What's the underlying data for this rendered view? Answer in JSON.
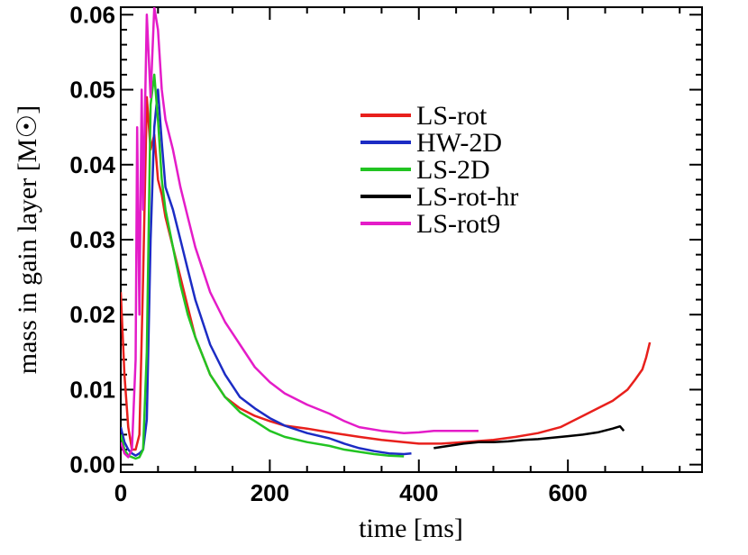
{
  "chart_data": {
    "type": "line",
    "title": "",
    "xlabel": "time [ms]",
    "ylabel": "mass in gain layer [M☉]",
    "xlim": [
      0,
      780
    ],
    "ylim": [
      -0.001,
      0.061
    ],
    "xticks": [
      0,
      200,
      400,
      600
    ],
    "xtick_labels": [
      "0",
      "200",
      "400",
      "600"
    ],
    "yticks": [
      0.0,
      0.01,
      0.02,
      0.03,
      0.04,
      0.05,
      0.06
    ],
    "ytick_labels": [
      "0.00",
      "0.01",
      "0.02",
      "0.03",
      "0.04",
      "0.05",
      "0.06"
    ],
    "grid": false,
    "legend_position": "upper-center",
    "series": [
      {
        "name": "LS-rot",
        "color": "#e8201c",
        "x": [
          0,
          5,
          10,
          15,
          20,
          25,
          30,
          35,
          40,
          45,
          50,
          55,
          60,
          70,
          80,
          90,
          100,
          120,
          140,
          160,
          180,
          200,
          220,
          250,
          280,
          300,
          320,
          350,
          380,
          400,
          430,
          460,
          500,
          530,
          560,
          590,
          620,
          640,
          660,
          680,
          690,
          700,
          705,
          710
        ],
        "y": [
          0.023,
          0.012,
          0.005,
          0.002,
          0.002,
          0.004,
          0.025,
          0.049,
          0.042,
          0.044,
          0.038,
          0.036,
          0.033,
          0.029,
          0.025,
          0.021,
          0.017,
          0.012,
          0.009,
          0.0075,
          0.0065,
          0.0058,
          0.0052,
          0.0048,
          0.0043,
          0.004,
          0.0037,
          0.0033,
          0.003,
          0.0028,
          0.0028,
          0.003,
          0.0033,
          0.0037,
          0.0042,
          0.005,
          0.0065,
          0.0075,
          0.0085,
          0.01,
          0.0113,
          0.0127,
          0.0143,
          0.0163
        ]
      },
      {
        "name": "HW-2D",
        "color": "#1c2cc4",
        "x": [
          0,
          5,
          10,
          15,
          20,
          25,
          30,
          35,
          40,
          45,
          50,
          55,
          60,
          70,
          80,
          90,
          100,
          120,
          140,
          160,
          180,
          200,
          220,
          250,
          280,
          300,
          320,
          340,
          360,
          380,
          390
        ],
        "y": [
          0.005,
          0.003,
          0.002,
          0.0015,
          0.0012,
          0.0015,
          0.002,
          0.006,
          0.03,
          0.045,
          0.05,
          0.043,
          0.037,
          0.034,
          0.03,
          0.026,
          0.022,
          0.016,
          0.012,
          0.009,
          0.0075,
          0.0062,
          0.0052,
          0.0042,
          0.0035,
          0.0028,
          0.0022,
          0.0018,
          0.0015,
          0.0014,
          0.0015
        ]
      },
      {
        "name": "LS-2D",
        "color": "#22c422",
        "x": [
          0,
          5,
          10,
          15,
          20,
          25,
          30,
          35,
          40,
          45,
          50,
          55,
          60,
          70,
          80,
          90,
          100,
          120,
          140,
          160,
          180,
          200,
          220,
          250,
          280,
          300,
          320,
          340,
          360,
          380
        ],
        "y": [
          0.004,
          0.002,
          0.0012,
          0.001,
          0.0008,
          0.001,
          0.002,
          0.015,
          0.048,
          0.052,
          0.046,
          0.038,
          0.034,
          0.029,
          0.024,
          0.02,
          0.017,
          0.012,
          0.009,
          0.007,
          0.0058,
          0.0045,
          0.0037,
          0.003,
          0.0025,
          0.002,
          0.0017,
          0.0014,
          0.0012,
          0.0011
        ]
      },
      {
        "name": "LS-rot-hr",
        "color": "#000000",
        "x": [
          420,
          440,
          460,
          480,
          500,
          520,
          540,
          560,
          580,
          600,
          620,
          640,
          660,
          670,
          675
        ],
        "y": [
          0.0022,
          0.0025,
          0.0028,
          0.003,
          0.003,
          0.0031,
          0.0033,
          0.0034,
          0.0036,
          0.0038,
          0.004,
          0.0043,
          0.0048,
          0.0051,
          0.0045
        ]
      },
      {
        "name": "LS-rot9",
        "color": "#e41cc8",
        "x": [
          0,
          5,
          10,
          15,
          20,
          22,
          25,
          28,
          30,
          35,
          40,
          45,
          50,
          55,
          60,
          70,
          80,
          90,
          100,
          120,
          140,
          160,
          180,
          200,
          220,
          250,
          280,
          300,
          320,
          350,
          380,
          400,
          420,
          450,
          480
        ],
        "y": [
          0.003,
          0.0015,
          0.001,
          0.002,
          0.014,
          0.045,
          0.02,
          0.05,
          0.034,
          0.06,
          0.049,
          0.061,
          0.058,
          0.05,
          0.046,
          0.042,
          0.037,
          0.033,
          0.029,
          0.023,
          0.019,
          0.016,
          0.013,
          0.011,
          0.0095,
          0.008,
          0.0068,
          0.0058,
          0.005,
          0.0045,
          0.0042,
          0.0043,
          0.0045,
          0.0045,
          0.0045
        ]
      }
    ]
  }
}
